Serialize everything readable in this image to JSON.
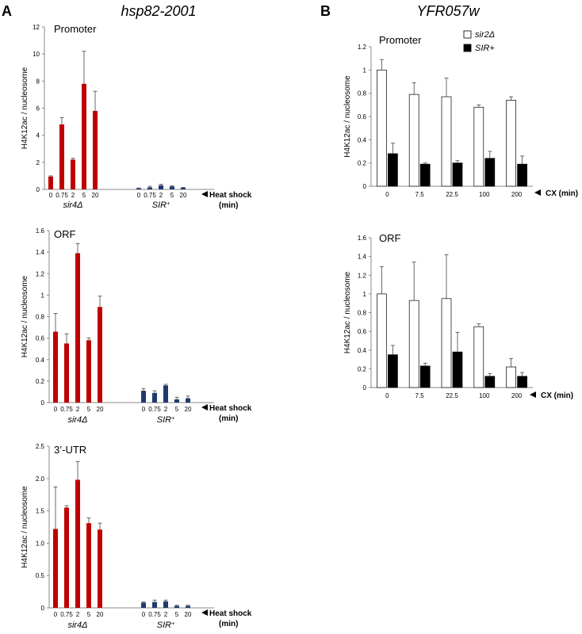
{
  "panels": {
    "A": {
      "letter": "A",
      "gene": "hsp82-2001"
    },
    "B": {
      "letter": "B",
      "gene": "YFR057w"
    }
  },
  "chart_data": [
    {
      "id": "a1",
      "type": "bar",
      "title": "Promoter",
      "ylabel": "H4K12ac / nucleosome",
      "ylim": [
        0,
        12
      ],
      "yticks": [
        0,
        2,
        4,
        6,
        8,
        10,
        12
      ],
      "categories": [
        "0",
        "0.75",
        "2",
        "5",
        "20"
      ],
      "groups": [
        {
          "name": "sir4Δ",
          "color": "#c00000",
          "values": [
            0.95,
            4.8,
            2.2,
            7.8,
            5.8
          ],
          "errors": [
            0.05,
            0.5,
            0.1,
            2.4,
            1.45
          ]
        },
        {
          "name": "SIR⁺",
          "color": "#1f3a6e",
          "values": [
            0.08,
            0.15,
            0.3,
            0.22,
            0.12
          ],
          "errors": [
            0.02,
            0.08,
            0.08,
            0.05,
            0.03
          ]
        }
      ],
      "xaxis_label": [
        "Heat shock",
        "(min)"
      ]
    },
    {
      "id": "a2",
      "type": "bar",
      "title": "ORF",
      "ylabel": "H4K12ac / nucleosome",
      "ylim": [
        0,
        1.6
      ],
      "yticks": [
        0,
        0.2,
        0.4,
        0.6,
        0.8,
        1,
        1.2,
        1.4,
        1.6
      ],
      "categories": [
        "0",
        "0.75",
        "2",
        "5",
        "20"
      ],
      "groups": [
        {
          "name": "sir4Δ",
          "color": "#c00000",
          "values": [
            0.66,
            0.55,
            1.39,
            0.58,
            0.89
          ],
          "errors": [
            0.17,
            0.09,
            0.09,
            0.02,
            0.1
          ]
        },
        {
          "name": "SIR⁺",
          "color": "#1f3a6e",
          "values": [
            0.11,
            0.09,
            0.16,
            0.03,
            0.04
          ],
          "errors": [
            0.02,
            0.02,
            0.01,
            0.02,
            0.02
          ]
        }
      ],
      "xaxis_label": [
        "Heat shock",
        "(min)"
      ]
    },
    {
      "id": "a3",
      "type": "bar",
      "title": "3’-UTR",
      "ylabel": "H4K12ac / nucleosome",
      "ylim": [
        0,
        2.5
      ],
      "yticks": [
        "0",
        "0.5",
        "1.0",
        "1.5",
        "2.0",
        "2.5"
      ],
      "categories": [
        "0",
        "0.75",
        "2",
        "5",
        "20"
      ],
      "groups": [
        {
          "name": "sir4Δ",
          "color": "#c00000",
          "values": [
            1.22,
            1.55,
            1.98,
            1.31,
            1.21
          ],
          "errors": [
            0.65,
            0.03,
            0.28,
            0.08,
            0.1
          ]
        },
        {
          "name": "SIR⁺",
          "color": "#1f3a6e",
          "values": [
            0.08,
            0.09,
            0.1,
            0.03,
            0.03
          ],
          "errors": [
            0.01,
            0.03,
            0.02,
            0.01,
            0.01
          ]
        }
      ],
      "xaxis_label": [
        "Heat shock",
        "(min)"
      ]
    },
    {
      "id": "b1",
      "type": "bar",
      "title": "Promoter",
      "ylabel": "H4K12ac / nucleosome",
      "ylim": [
        0,
        1.2
      ],
      "yticks": [
        "0",
        "0.2",
        "0.4",
        "0.6",
        "0.8",
        "1",
        "1.2"
      ],
      "categories": [
        "0",
        "7.5",
        "22.5",
        "100",
        "200"
      ],
      "legend": [
        "sir2Δ",
        "SIR+"
      ],
      "series": [
        {
          "name": "sir2Δ",
          "fill": "#ffffff",
          "values": [
            1.0,
            0.79,
            0.77,
            0.68,
            0.74
          ],
          "errors": [
            0.09,
            0.1,
            0.16,
            0.02,
            0.03
          ]
        },
        {
          "name": "SIR+",
          "fill": "#000000",
          "values": [
            0.28,
            0.19,
            0.2,
            0.24,
            0.19
          ],
          "errors": [
            0.09,
            0.01,
            0.02,
            0.06,
            0.07
          ]
        }
      ],
      "xaxis_label": "CX (min)"
    },
    {
      "id": "b2",
      "type": "bar",
      "title": "ORF",
      "ylabel": "H4K12ac / nucleosome",
      "ylim": [
        0,
        1.6
      ],
      "yticks": [
        "0",
        "0.2",
        "0.4",
        "0.6",
        "0.8",
        "1",
        "1.2",
        "1.4",
        "1.6"
      ],
      "categories": [
        "0",
        "7.5",
        "22.5",
        "100",
        "200"
      ],
      "series": [
        {
          "name": "sir2Δ",
          "fill": "#ffffff",
          "values": [
            1.0,
            0.93,
            0.95,
            0.65,
            0.22
          ],
          "errors": [
            0.29,
            0.41,
            0.47,
            0.03,
            0.09
          ]
        },
        {
          "name": "SIR+",
          "fill": "#000000",
          "values": [
            0.35,
            0.23,
            0.38,
            0.12,
            0.12
          ],
          "errors": [
            0.1,
            0.03,
            0.21,
            0.03,
            0.04
          ]
        }
      ],
      "xaxis_label": "CX (min)"
    }
  ]
}
